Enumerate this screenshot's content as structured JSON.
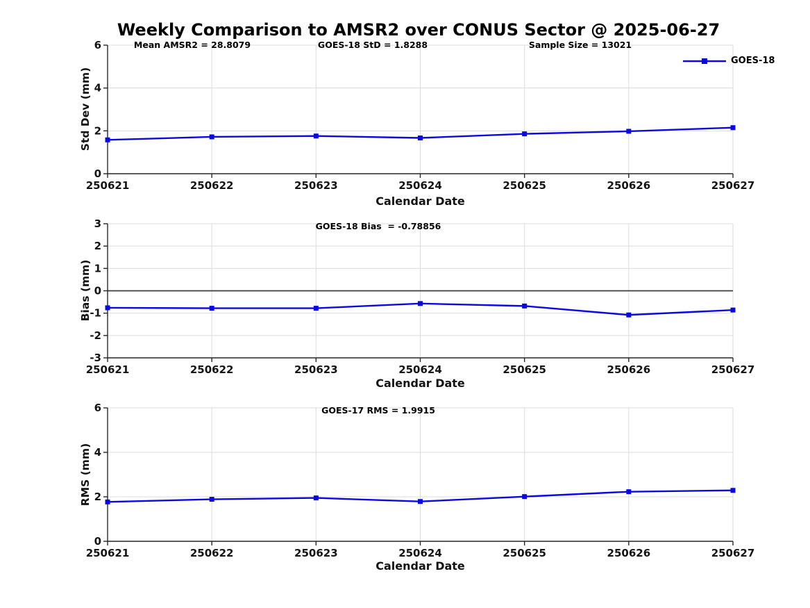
{
  "title": "Weekly Comparison to AMSR2 over CONUS Sector @ 2025-06-27",
  "legend": {
    "label": "GOES-18"
  },
  "colors": {
    "series": "#0A0AE0",
    "grid": "#DCDCDC",
    "axis": "#262626",
    "zero_line": "#3C3C3C",
    "text": "#000000"
  },
  "chart_data": [
    {
      "type": "line",
      "name": "std-dev-subplot",
      "title": "Weekly Comparison to AMSR2 over CONUS Sector @ 2025-06-27",
      "annotations": [
        "Mean AMSR2 = 28.8079",
        "GOES-18 StD = 1.8288",
        "Sample Size = 13021"
      ],
      "categories": [
        "250621",
        "250622",
        "250623",
        "250624",
        "250625",
        "250626",
        "250627"
      ],
      "series": [
        {
          "name": "GOES-18",
          "values": [
            1.58,
            1.72,
            1.76,
            1.67,
            1.86,
            1.98,
            2.15
          ]
        }
      ],
      "xlabel": "Calendar Date",
      "ylabel": "Std Dev (mm)",
      "ylim": [
        0,
        6
      ],
      "yticks": [
        0,
        2,
        4,
        6
      ],
      "grid": true,
      "legend_position": "outside-top-right",
      "marker": "square"
    },
    {
      "type": "line",
      "name": "bias-subplot",
      "annotations": [
        "GOES-18 Bias  = -0.78856"
      ],
      "categories": [
        "250621",
        "250622",
        "250623",
        "250624",
        "250625",
        "250626",
        "250627"
      ],
      "series": [
        {
          "name": "GOES-18",
          "values": [
            -0.76,
            -0.78,
            -0.78,
            -0.57,
            -0.68,
            -1.08,
            -0.86
          ]
        }
      ],
      "xlabel": "Calendar Date",
      "ylabel": "Bias (mm)",
      "ylim": [
        -3,
        3
      ],
      "yticks": [
        -3,
        -2,
        -1,
        0,
        1,
        2,
        3
      ],
      "zero_line": true,
      "grid": true,
      "marker": "square"
    },
    {
      "type": "line",
      "name": "rms-subplot",
      "annotations": [
        "GOES-17 RMS = 1.9915"
      ],
      "categories": [
        "250621",
        "250622",
        "250623",
        "250624",
        "250625",
        "250626",
        "250627"
      ],
      "series": [
        {
          "name": "GOES-18",
          "values": [
            1.77,
            1.89,
            1.95,
            1.79,
            2.01,
            2.23,
            2.29
          ]
        }
      ],
      "xlabel": "Calendar Date",
      "ylabel": "RMS (mm)",
      "ylim": [
        0,
        6
      ],
      "yticks": [
        0,
        2,
        4,
        6
      ],
      "grid": true,
      "marker": "square"
    }
  ]
}
